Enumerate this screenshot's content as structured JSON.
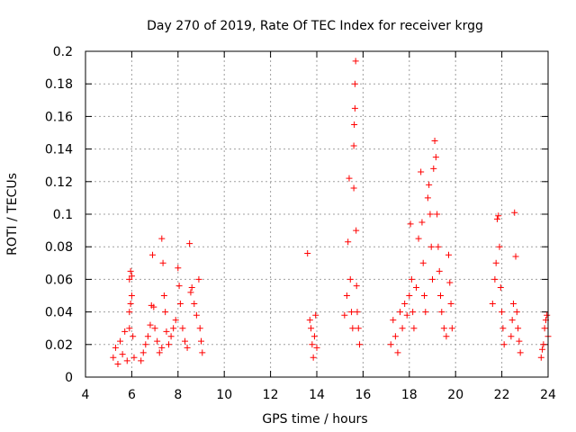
{
  "chart_data": {
    "type": "scatter",
    "title": "Day 270 of 2019, Rate Of TEC Index for receiver krgg",
    "xlabel": "GPS time / hours",
    "ylabel": "ROTI / TECUs",
    "xlim": [
      4,
      24
    ],
    "ylim": [
      0,
      0.2
    ],
    "xticks": [
      4,
      6,
      8,
      10,
      12,
      14,
      16,
      18,
      20,
      22,
      24
    ],
    "yticks": [
      0,
      0.02,
      0.04,
      0.06,
      0.08,
      0.1,
      0.12,
      0.14,
      0.16,
      0.18,
      0.2
    ],
    "grid": true,
    "marker": "+",
    "marker_color": "#ff0000",
    "series": [
      {
        "name": "ROTI",
        "points": [
          [
            5.2,
            0.012
          ],
          [
            5.3,
            0.018
          ],
          [
            5.4,
            0.008
          ],
          [
            5.5,
            0.022
          ],
          [
            5.6,
            0.014
          ],
          [
            5.7,
            0.028
          ],
          [
            5.8,
            0.01
          ],
          [
            5.9,
            0.03
          ],
          [
            5.95,
            0.065
          ],
          [
            5.9,
            0.06
          ],
          [
            6.0,
            0.05
          ],
          [
            6.0,
            0.062
          ],
          [
            5.95,
            0.045
          ],
          [
            5.9,
            0.04
          ],
          [
            6.05,
            0.025
          ],
          [
            6.1,
            0.012
          ],
          [
            6.4,
            0.01
          ],
          [
            6.5,
            0.015
          ],
          [
            6.6,
            0.02
          ],
          [
            6.7,
            0.025
          ],
          [
            6.8,
            0.032
          ],
          [
            6.85,
            0.044
          ],
          [
            6.9,
            0.075
          ],
          [
            6.95,
            0.043
          ],
          [
            7.0,
            0.03
          ],
          [
            7.1,
            0.022
          ],
          [
            7.2,
            0.015
          ],
          [
            7.3,
            0.018
          ],
          [
            7.3,
            0.085
          ],
          [
            7.35,
            0.07
          ],
          [
            7.4,
            0.05
          ],
          [
            7.45,
            0.04
          ],
          [
            7.5,
            0.028
          ],
          [
            7.6,
            0.02
          ],
          [
            7.7,
            0.025
          ],
          [
            7.8,
            0.03
          ],
          [
            7.9,
            0.035
          ],
          [
            8.0,
            0.067
          ],
          [
            8.05,
            0.056
          ],
          [
            8.1,
            0.045
          ],
          [
            8.2,
            0.03
          ],
          [
            8.3,
            0.022
          ],
          [
            8.4,
            0.018
          ],
          [
            8.5,
            0.082
          ],
          [
            8.55,
            0.052
          ],
          [
            8.6,
            0.055
          ],
          [
            8.7,
            0.045
          ],
          [
            8.8,
            0.038
          ],
          [
            8.9,
            0.06
          ],
          [
            8.95,
            0.03
          ],
          [
            9.0,
            0.022
          ],
          [
            9.05,
            0.015
          ],
          [
            13.6,
            0.076
          ],
          [
            13.7,
            0.035
          ],
          [
            13.75,
            0.03
          ],
          [
            13.8,
            0.02
          ],
          [
            13.85,
            0.012
          ],
          [
            13.9,
            0.025
          ],
          [
            13.95,
            0.038
          ],
          [
            14.0,
            0.018
          ],
          [
            15.2,
            0.038
          ],
          [
            15.3,
            0.05
          ],
          [
            15.35,
            0.083
          ],
          [
            15.4,
            0.122
          ],
          [
            15.45,
            0.06
          ],
          [
            15.5,
            0.04
          ],
          [
            15.55,
            0.03
          ],
          [
            15.6,
            0.116
          ],
          [
            15.6,
            0.142
          ],
          [
            15.62,
            0.155
          ],
          [
            15.65,
            0.165
          ],
          [
            15.65,
            0.18
          ],
          [
            15.68,
            0.194
          ],
          [
            15.7,
            0.09
          ],
          [
            15.72,
            0.056
          ],
          [
            15.75,
            0.04
          ],
          [
            15.8,
            0.03
          ],
          [
            15.85,
            0.02
          ],
          [
            17.2,
            0.02
          ],
          [
            17.3,
            0.035
          ],
          [
            17.4,
            0.025
          ],
          [
            17.5,
            0.015
          ],
          [
            17.6,
            0.04
          ],
          [
            17.7,
            0.03
          ],
          [
            17.8,
            0.045
          ],
          [
            17.9,
            0.038
          ],
          [
            18.0,
            0.05
          ],
          [
            18.05,
            0.094
          ],
          [
            18.1,
            0.06
          ],
          [
            18.15,
            0.04
          ],
          [
            18.2,
            0.03
          ],
          [
            18.3,
            0.055
          ],
          [
            18.4,
            0.085
          ],
          [
            18.5,
            0.126
          ],
          [
            18.55,
            0.095
          ],
          [
            18.6,
            0.07
          ],
          [
            18.65,
            0.05
          ],
          [
            18.7,
            0.04
          ],
          [
            18.8,
            0.11
          ],
          [
            18.85,
            0.118
          ],
          [
            18.9,
            0.1
          ],
          [
            18.95,
            0.08
          ],
          [
            19.0,
            0.06
          ],
          [
            19.05,
            0.128
          ],
          [
            19.1,
            0.145
          ],
          [
            19.15,
            0.135
          ],
          [
            19.2,
            0.1
          ],
          [
            19.25,
            0.08
          ],
          [
            19.3,
            0.065
          ],
          [
            19.35,
            0.05
          ],
          [
            19.4,
            0.04
          ],
          [
            19.5,
            0.03
          ],
          [
            19.6,
            0.025
          ],
          [
            19.7,
            0.075
          ],
          [
            19.75,
            0.058
          ],
          [
            19.8,
            0.045
          ],
          [
            19.85,
            0.03
          ],
          [
            21.6,
            0.045
          ],
          [
            21.7,
            0.06
          ],
          [
            21.75,
            0.07
          ],
          [
            21.8,
            0.097
          ],
          [
            21.85,
            0.099
          ],
          [
            21.9,
            0.08
          ],
          [
            21.95,
            0.055
          ],
          [
            22.0,
            0.04
          ],
          [
            22.05,
            0.03
          ],
          [
            22.1,
            0.02
          ],
          [
            22.4,
            0.025
          ],
          [
            22.45,
            0.035
          ],
          [
            22.5,
            0.045
          ],
          [
            22.55,
            0.101
          ],
          [
            22.6,
            0.074
          ],
          [
            22.65,
            0.04
          ],
          [
            22.7,
            0.03
          ],
          [
            22.75,
            0.022
          ],
          [
            22.8,
            0.015
          ],
          [
            23.7,
            0.012
          ],
          [
            23.8,
            0.02
          ],
          [
            23.85,
            0.03
          ],
          [
            23.9,
            0.035
          ],
          [
            23.95,
            0.038
          ],
          [
            24.0,
            0.025
          ],
          [
            23.75,
            0.017
          ]
        ]
      }
    ]
  }
}
